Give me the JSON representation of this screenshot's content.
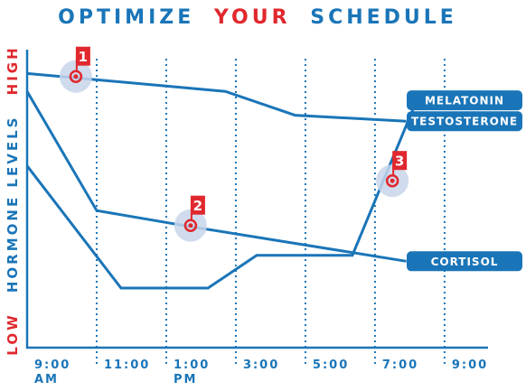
{
  "chart_data": {
    "type": "line",
    "title_parts": [
      "OPTIMIZE",
      "YOUR",
      "SCHEDULE"
    ],
    "y_axis_parts": [
      "LOW",
      "HORMONE LEVELS",
      "HIGH"
    ],
    "xlim": [
      9,
      22.25
    ],
    "xticks": [
      {
        "value": 9,
        "label": "9:00 AM"
      },
      {
        "value": 11,
        "label": "11:00"
      },
      {
        "value": 13,
        "label": "1:00 PM"
      },
      {
        "value": 15,
        "label": "3:00"
      },
      {
        "value": 17,
        "label": "5:00"
      },
      {
        "value": 19,
        "label": "7:00"
      },
      {
        "value": 21,
        "label": "9:00"
      }
    ],
    "ylim": [
      0,
      100
    ],
    "grid": true,
    "series": [
      {
        "name": "MELATONIN",
        "color": "#1a75b8",
        "x": [
          9,
          11.7,
          14.2,
          15.6,
          18.35,
          20.2
        ],
        "values": [
          61,
          20,
          20,
          31,
          31,
          83
        ]
      },
      {
        "name": "TESTOSTERONE",
        "color": "#1a75b8",
        "x": [
          9,
          14.7,
          16.7,
          19.9
        ],
        "values": [
          92,
          86,
          78,
          76
        ]
      },
      {
        "name": "CORTISOL",
        "color": "#1a75b8",
        "x": [
          9,
          11,
          13.5,
          19.9
        ],
        "values": [
          86,
          46,
          41,
          29
        ]
      }
    ],
    "annotations": [
      {
        "label": "1",
        "x": 10.4,
        "y": 91
      },
      {
        "label": "2",
        "x": 13.7,
        "y": 41
      },
      {
        "label": "3",
        "x": 19.5,
        "y": 56
      }
    ]
  }
}
